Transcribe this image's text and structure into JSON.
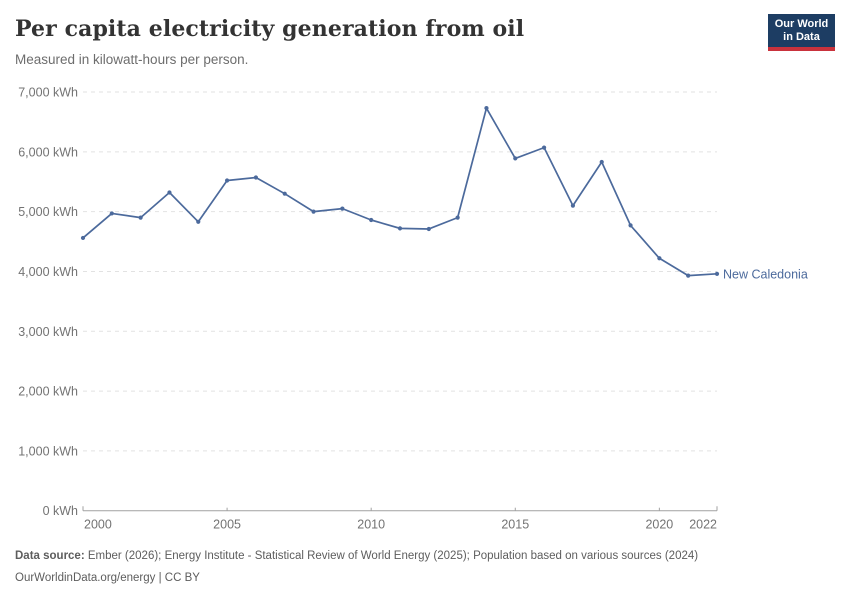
{
  "header": {
    "title": "Per capita electricity generation from oil",
    "subtitle": "Measured in kilowatt-hours per person.",
    "logo_line1": "Our World",
    "logo_line2": "in Data"
  },
  "chart_data": {
    "type": "line",
    "title": "Per capita electricity generation from oil",
    "subtitle": "Measured in kilowatt-hours per person.",
    "xlabel": "",
    "ylabel": "kWh",
    "xlim": [
      2000,
      2022
    ],
    "ylim": [
      0,
      7000
    ],
    "grid": "horizontal-dashed",
    "legend_position": "end-of-line",
    "x_ticks": [
      2000,
      2005,
      2010,
      2015,
      2020,
      2022
    ],
    "y_ticks": [
      0,
      1000,
      2000,
      3000,
      4000,
      5000,
      6000,
      7000
    ],
    "y_tick_suffix": " kWh",
    "series": [
      {
        "name": "New Caledonia",
        "color": "#4C6A9C",
        "x": [
          2000,
          2001,
          2002,
          2003,
          2004,
          2005,
          2006,
          2007,
          2008,
          2009,
          2010,
          2011,
          2012,
          2013,
          2014,
          2015,
          2016,
          2017,
          2018,
          2019,
          2020,
          2021,
          2022
        ],
        "values": [
          4560,
          4970,
          4900,
          5320,
          4830,
          5520,
          5570,
          5300,
          5000,
          5050,
          4860,
          4720,
          4710,
          4900,
          6730,
          5890,
          6070,
          5100,
          5830,
          4770,
          4220,
          3930,
          3960
        ]
      }
    ]
  },
  "footer": {
    "source_label": "Data source:",
    "source_text": " Ember (2026); Energy Institute - Statistical Review of World Energy (2025); Population based on various sources (2024)",
    "license_line": "OurWorldinData.org/energy | CC BY"
  },
  "colors": {
    "line": "#4C6A9C",
    "grid": "#e2e2e2",
    "axis": "#a1a1a1",
    "tick_label": "#737373",
    "logo_bg": "#1d3d63",
    "logo_bar": "#c9323c",
    "title_text": "#333333",
    "subtitle_text": "#6d6d6d",
    "footer_text": "#5d5d5d"
  }
}
